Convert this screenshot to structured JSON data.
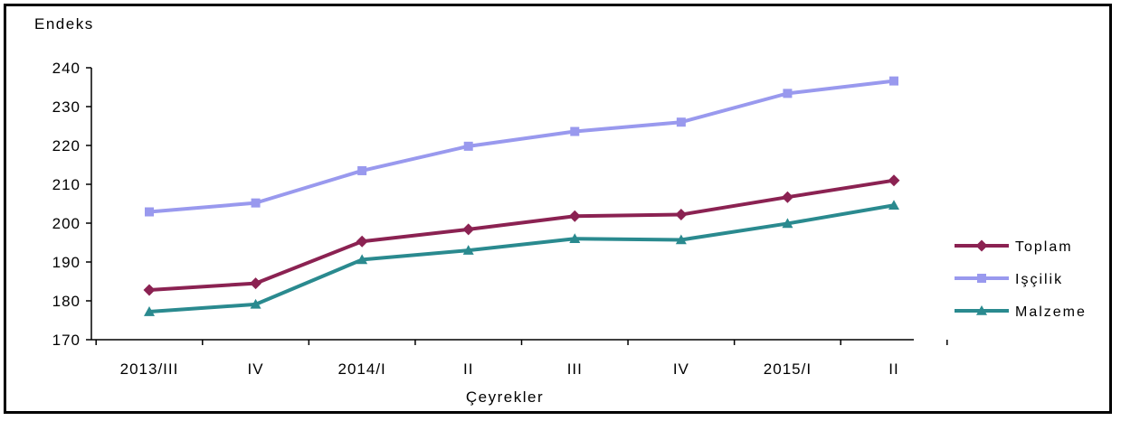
{
  "chart_data": {
    "type": "line",
    "ylabel": "Endeks",
    "xlabel": "Çeyrekler",
    "categories": [
      "2013/III",
      "IV",
      "2014/I",
      "II",
      "III",
      "IV",
      "2015/I",
      "II"
    ],
    "ylim": [
      170,
      240
    ],
    "yticks": [
      170,
      180,
      190,
      200,
      210,
      220,
      230,
      240
    ],
    "grid": false,
    "legend_position": "right",
    "series": [
      {
        "name": "Toplam",
        "marker": "diamond",
        "color": "#8b2252",
        "values": [
          182.8,
          184.5,
          195.3,
          198.4,
          201.8,
          202.2,
          206.7,
          211.0
        ]
      },
      {
        "name": "Işçilik",
        "marker": "square",
        "color": "#9999ee",
        "values": [
          202.9,
          205.2,
          213.5,
          219.8,
          223.6,
          226.0,
          233.4,
          236.6
        ]
      },
      {
        "name": "Malzeme",
        "marker": "triangle",
        "color": "#2a8a8f",
        "values": [
          177.2,
          179.1,
          190.6,
          193.0,
          196.0,
          195.7,
          199.9,
          204.6
        ]
      }
    ]
  }
}
